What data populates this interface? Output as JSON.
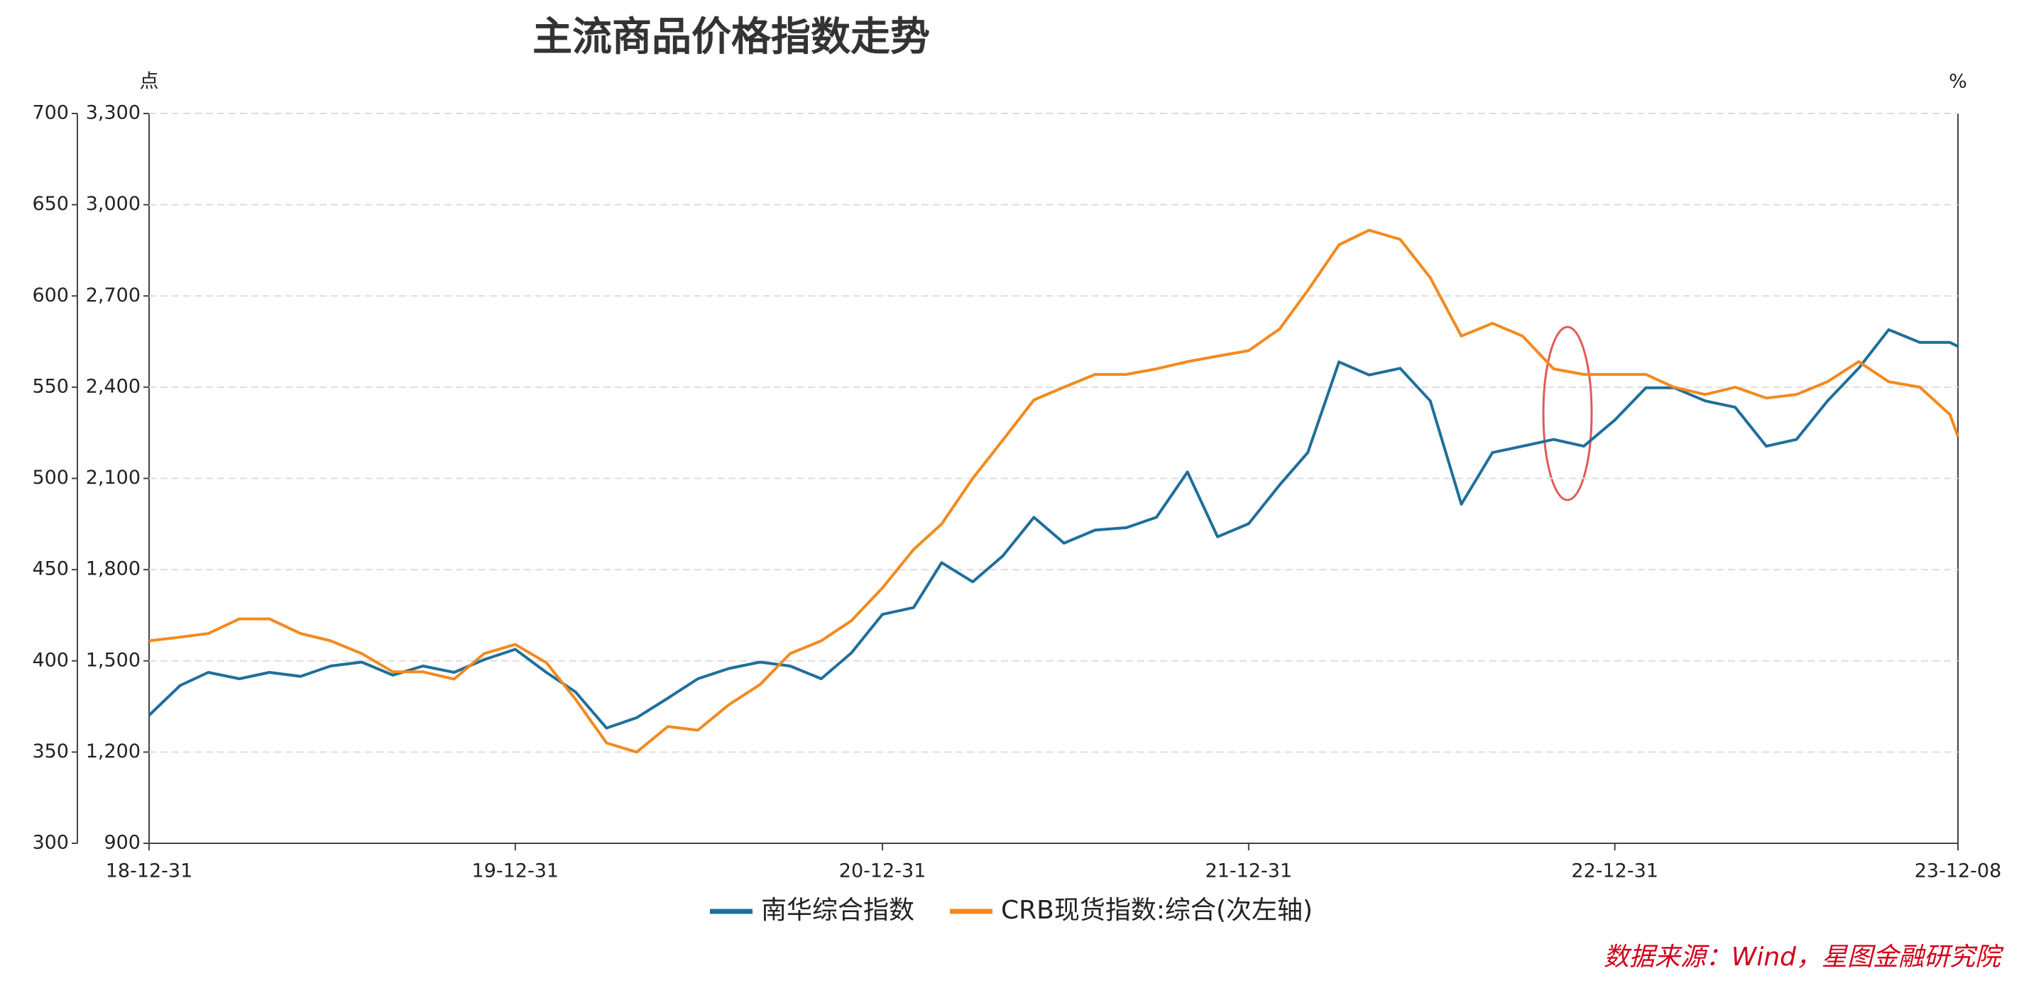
{
  "chart_data": {
    "type": "line",
    "title": "主流商品价格指数走势",
    "y_label": "点",
    "y2_label": "%",
    "source": "数据来源：Wind，星图金融研究院",
    "x": [
      "18-12-31",
      "19-01-31",
      "19-02-28",
      "19-03-31",
      "19-04-30",
      "19-05-31",
      "19-06-30",
      "19-07-31",
      "19-08-31",
      "19-09-30",
      "19-10-31",
      "19-11-30",
      "19-12-31",
      "20-01-31",
      "20-02-29",
      "20-03-31",
      "20-04-30",
      "20-05-31",
      "20-06-30",
      "20-07-31",
      "20-08-31",
      "20-09-30",
      "20-10-31",
      "20-11-30",
      "20-12-31",
      "21-01-31",
      "21-02-28",
      "21-03-31",
      "21-04-30",
      "21-05-31",
      "21-06-30",
      "21-07-31",
      "21-08-31",
      "21-09-30",
      "21-10-31",
      "21-11-30",
      "21-12-31",
      "22-01-31",
      "22-02-28",
      "22-03-31",
      "22-04-30",
      "22-05-31",
      "22-06-30",
      "22-07-31",
      "22-08-31",
      "22-09-30",
      "22-10-31",
      "22-11-30",
      "22-12-31",
      "23-01-31",
      "23-02-28",
      "23-03-31",
      "23-04-30",
      "23-05-31",
      "23-06-30",
      "23-07-31",
      "23-08-31",
      "23-09-30",
      "23-10-31",
      "23-11-30",
      "23-12-08"
    ],
    "xlim": [
      "18-12-31",
      "23-12-08"
    ],
    "xticks": [
      "18-12-31",
      "19-12-31",
      "20-12-31",
      "21-12-31",
      "22-12-31",
      "23-12-08"
    ],
    "ylim": [
      300,
      700
    ],
    "yticks": [
      300,
      350,
      400,
      450,
      500,
      550,
      600,
      650,
      700
    ],
    "y2lim": [
      900,
      3300
    ],
    "y2ticks": [
      900,
      {
        "value": 1200,
        "label": "1,200"
      },
      {
        "value": 1500,
        "label": "1,500"
      },
      {
        "value": 1800,
        "label": "1,800"
      },
      {
        "value": 2100,
        "label": "2,100"
      },
      {
        "value": 2400,
        "label": "2,400"
      },
      {
        "value": 2700,
        "label": "2,700"
      },
      {
        "value": 3000,
        "label": "3,000"
      },
      {
        "value": 3300,
        "label": "3,300"
      }
    ],
    "grid": true,
    "series": [
      {
        "name": "南华综合指数",
        "color": "#1f6f9a",
        "axis": "y2",
        "values": [
          1321,
          1419,
          1462,
          1441,
          1462,
          1449,
          1483,
          1496,
          1453,
          1483,
          1462,
          1504,
          1538,
          1462,
          1398,
          1279,
          1313,
          1377,
          1441,
          1475,
          1496,
          1483,
          1441,
          1526,
          1653,
          1675,
          1823,
          1760,
          1845,
          1972,
          1887,
          1930,
          1938,
          1972,
          2121,
          1908,
          1951,
          2079,
          2185,
          2483,
          2440,
          2462,
          2355,
          2015,
          2185,
          2206,
          2228,
          2206,
          2292,
          2398,
          2398,
          2355,
          2334,
          2206,
          2228,
          2355,
          2462,
          2589,
          2547,
          2547,
          2534
        ]
      },
      {
        "name": "CRB现货指数:综合(次左轴)",
        "color": "#f28a1e",
        "values": [
          411,
          413,
          415,
          423,
          423,
          415,
          411,
          404,
          394,
          394,
          390,
          404,
          409,
          399,
          379,
          355,
          350,
          364,
          362,
          376,
          387,
          404,
          411,
          422,
          440,
          461,
          475,
          500,
          521,
          543,
          550,
          557,
          557,
          560,
          564,
          567,
          570,
          582,
          603,
          628,
          636,
          631,
          610,
          578,
          585,
          578,
          560,
          557,
          557,
          557,
          550,
          546,
          550,
          544,
          546,
          553,
          564,
          553,
          550,
          535,
          523
        ]
      }
    ]
  }
}
